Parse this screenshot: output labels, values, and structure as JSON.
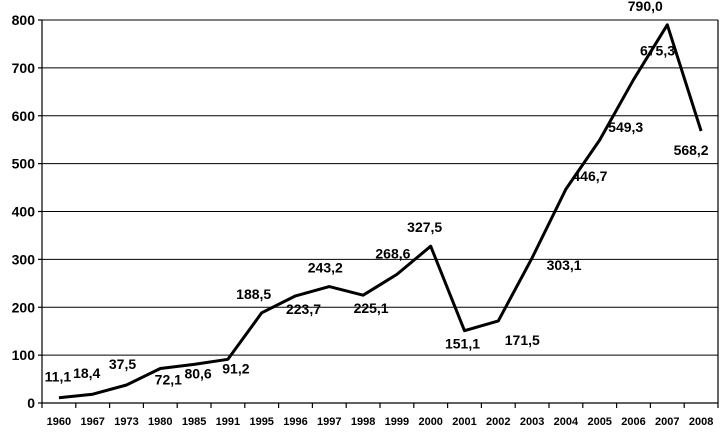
{
  "chart_data": {
    "type": "line",
    "categories": [
      "1960",
      "1967",
      "1973",
      "1980",
      "1985",
      "1991",
      "1995",
      "1996",
      "1997",
      "1998",
      "1999",
      "2000",
      "2001",
      "2002",
      "2003",
      "2004",
      "2005",
      "2006",
      "2007",
      "2008"
    ],
    "values": [
      11.1,
      18.4,
      37.5,
      72.1,
      80.6,
      91.2,
      188.5,
      223.7,
      243.2,
      225.1,
      268.6,
      327.5,
      151.1,
      171.5,
      303.1,
      446.7,
      549.3,
      675.3,
      790.0,
      568.2
    ],
    "data_labels": [
      "11,1",
      "18,4",
      "37,5",
      "72,1",
      "80,6",
      "91,2",
      "188,5",
      "223,7",
      "243,2",
      "225,1",
      "268,6",
      "327,5",
      "151,1",
      "171,5",
      "303,1",
      "446,7",
      "549,3",
      "675,3",
      "790,0",
      "568,2"
    ],
    "yticks": [
      "0",
      "100",
      "200",
      "300",
      "400",
      "500",
      "600",
      "700",
      "800"
    ],
    "ylim": [
      0,
      800
    ],
    "grid": true,
    "legend": "none",
    "line_color": "#000000"
  }
}
